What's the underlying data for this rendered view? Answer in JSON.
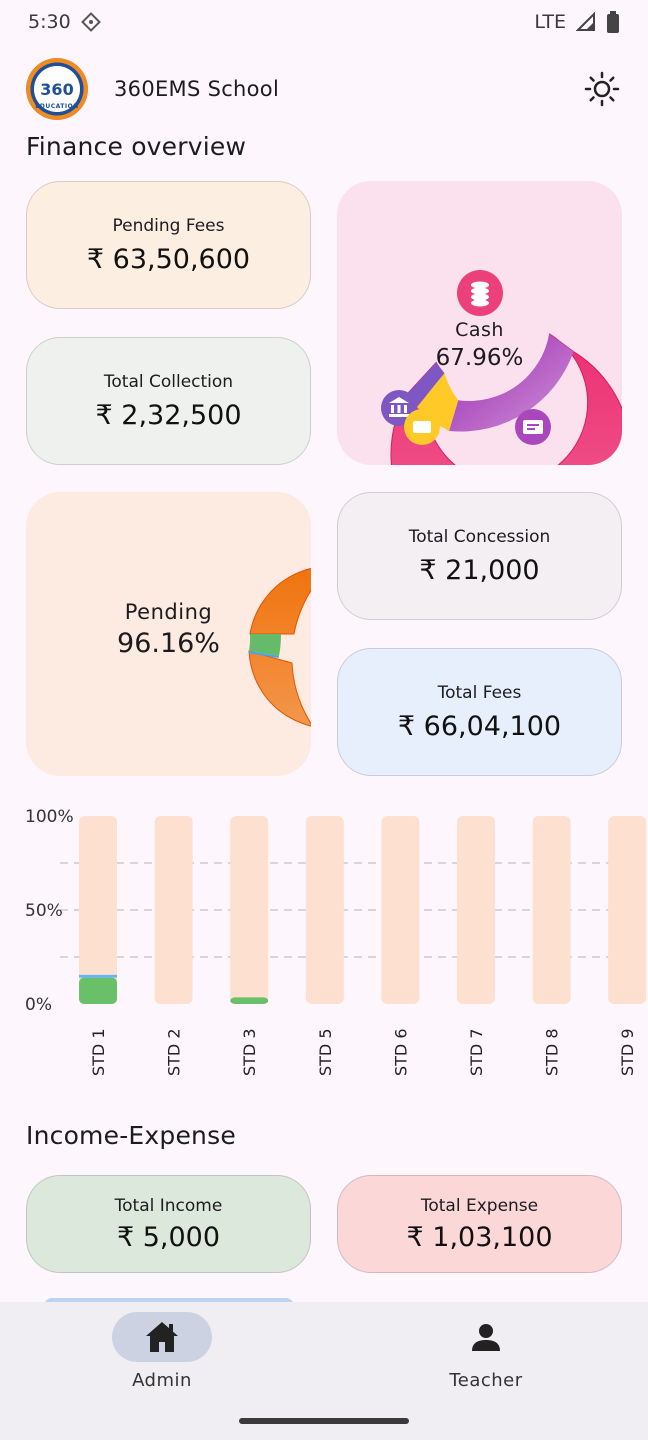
{
  "status": {
    "time": "5:30",
    "network": "LTE"
  },
  "header": {
    "title": "360EMS School",
    "logo_text": "360",
    "logo_sub": "EDUCATION"
  },
  "finance": {
    "title": "Finance overview",
    "pending_fees": {
      "label": "Pending Fees",
      "value": "₹ 63,50,600"
    },
    "total_collection": {
      "label": "Total Collection",
      "value": "₹ 2,32,500"
    },
    "total_concession": {
      "label": "Total Concession",
      "value": "₹ 21,000"
    },
    "total_fees": {
      "label": "Total Fees",
      "value": "₹ 66,04,100"
    },
    "payment_donut": {
      "center_label": "Cash",
      "center_value": "67.96%",
      "slices": [
        {
          "name": "Cash",
          "percent": 67.96,
          "color": "#ec407a"
        },
        {
          "name": "Cheque",
          "percent": 20.0,
          "color": "#ab47bc"
        },
        {
          "name": "Wallet",
          "percent": 7.0,
          "color": "#ffca28"
        },
        {
          "name": "Bank",
          "percent": 5.04,
          "color": "#7e57c2"
        }
      ],
      "icons": [
        "coins-icon",
        "bank-icon",
        "wallet-icon",
        "cheque-icon"
      ]
    },
    "status_donut": {
      "center_label": "Pending",
      "center_value": "96.16%",
      "slices": [
        {
          "name": "Pending",
          "percent": 96.16,
          "color": "#f07b1c"
        },
        {
          "name": "Collected",
          "percent": 3.52,
          "color": "#66bb6a"
        },
        {
          "name": "Concession",
          "percent": 0.32,
          "color": "#42a5f5"
        }
      ]
    }
  },
  "chart_data": {
    "type": "bar",
    "categories": [
      "STD 1",
      "STD 2",
      "STD 3",
      "STD 5",
      "STD 6",
      "STD 7",
      "STD 8",
      "STD 9"
    ],
    "series": [
      {
        "values": [
          14,
          0,
          3.5,
          0,
          0,
          0,
          0,
          0
        ],
        "color": "#6abf69"
      },
      {
        "values": [
          1.5,
          0,
          0,
          0,
          0,
          0,
          0,
          0
        ],
        "color": "#64b5f6"
      },
      {
        "values": [
          84.5,
          100,
          96.5,
          100,
          100,
          100,
          100,
          100
        ],
        "color": "#fde0cf"
      }
    ],
    "y_ticks": [
      "100%",
      "50%",
      "0%"
    ],
    "ylim": [
      0,
      100
    ],
    "stacked": true,
    "grid": true
  },
  "income_expense": {
    "title": "Income-Expense",
    "total_income": {
      "label": "Total Income",
      "value": "₹ 5,000"
    },
    "total_expense": {
      "label": "Total Expense",
      "value": "₹ 1,03,100"
    }
  },
  "nav": {
    "items": [
      {
        "label": "Admin",
        "icon": "home-icon",
        "active": true
      },
      {
        "label": "Teacher",
        "icon": "person-icon",
        "active": false
      }
    ]
  }
}
